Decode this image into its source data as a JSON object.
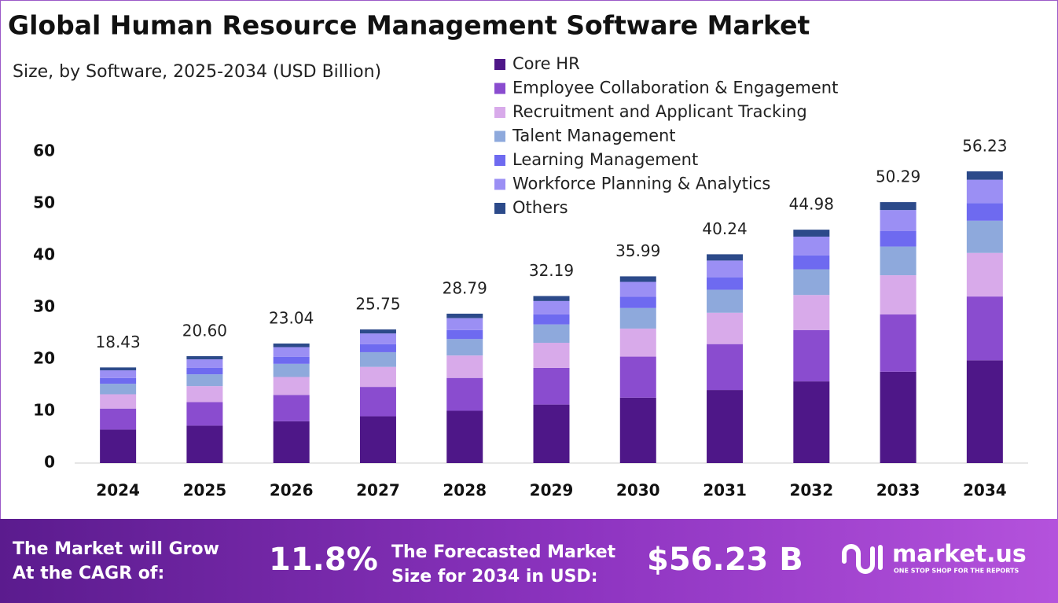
{
  "chart_data": {
    "type": "stacked-bar",
    "title": "Global Human Resource Management Software Market",
    "subtitle": "Size, by Software, 2025-2034 (USD Billion)",
    "categories": [
      "2024",
      "2025",
      "2026",
      "2027",
      "2028",
      "2029",
      "2030",
      "2031",
      "2032",
      "2033",
      "2034"
    ],
    "series": [
      {
        "name": "Core HR",
        "color": "#4e1788",
        "values": [
          6.45,
          7.21,
          8.06,
          9.01,
          10.08,
          11.27,
          12.6,
          14.08,
          15.74,
          17.6,
          19.8
        ]
      },
      {
        "name": "Employee Collaboration & Engagement",
        "color": "#8a4ccf",
        "values": [
          4.05,
          4.53,
          5.07,
          5.67,
          6.33,
          7.08,
          7.92,
          8.85,
          9.9,
          11.06,
          12.3
        ]
      },
      {
        "name": "Recruitment and Applicant Tracking",
        "color": "#d8aaea",
        "values": [
          2.76,
          3.09,
          3.46,
          3.86,
          4.32,
          4.83,
          5.4,
          6.04,
          6.75,
          7.54,
          8.4
        ]
      },
      {
        "name": "Talent Management",
        "color": "#8ea9dc",
        "values": [
          2.03,
          2.27,
          2.53,
          2.83,
          3.17,
          3.54,
          3.96,
          4.43,
          4.95,
          5.53,
          6.2
        ]
      },
      {
        "name": "Learning Management",
        "color": "#6e6af0",
        "values": [
          1.11,
          1.24,
          1.38,
          1.55,
          1.73,
          1.93,
          2.16,
          2.41,
          2.7,
          3.02,
          3.4
        ]
      },
      {
        "name": "Workforce Planning & Analytics",
        "color": "#9b8ff4",
        "values": [
          1.47,
          1.65,
          1.84,
          2.06,
          2.3,
          2.58,
          2.88,
          3.22,
          3.6,
          4.02,
          4.5
        ]
      },
      {
        "name": "Others",
        "color": "#2c4a8a",
        "values": [
          0.56,
          0.61,
          0.7,
          0.77,
          0.86,
          0.96,
          1.07,
          1.21,
          1.34,
          1.52,
          1.63
        ]
      }
    ],
    "totals": [
      18.43,
      20.6,
      23.04,
      25.75,
      28.79,
      32.19,
      35.99,
      40.24,
      44.98,
      50.29,
      56.23
    ],
    "total_labels": [
      "18.43",
      "20.60",
      "23.04",
      "25.75",
      "28.79",
      "32.19",
      "35.99",
      "40.24",
      "44.98",
      "50.29",
      "56.23"
    ],
    "ylim": [
      0,
      60
    ],
    "yticks": [
      0,
      10,
      20,
      30,
      40,
      50,
      60
    ],
    "grid": false
  },
  "footer": {
    "cagr_text": [
      "The Market will Grow",
      "At the CAGR of:"
    ],
    "cagr_value": "11.8%",
    "forecast_text": [
      "The Forecasted Market",
      "Size for 2034 in USD:"
    ],
    "forecast_value": "$56.23 B",
    "brand": "market.us",
    "tagline": "ONE STOP SHOP FOR THE REPORTS"
  }
}
